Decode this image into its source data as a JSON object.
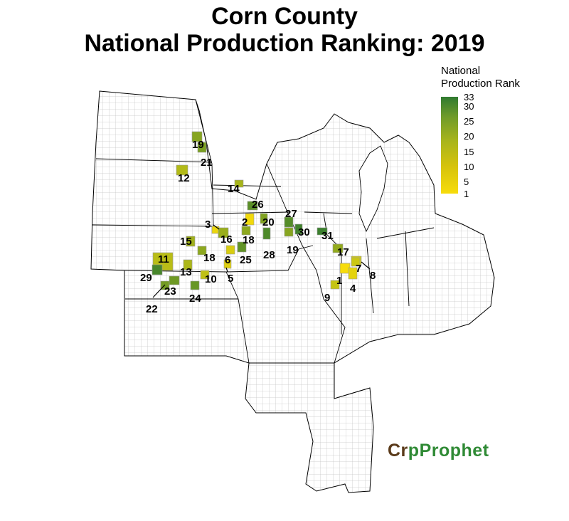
{
  "title": {
    "line1": "Corn County",
    "line2": "National Production Ranking: 2019"
  },
  "legend": {
    "title_line1": "National",
    "title_line2": "Production Rank",
    "ticks": [
      "33",
      "30",
      "25",
      "20",
      "15",
      "10",
      "5",
      "1"
    ],
    "colors": {
      "low_rank": "#f7dc0b",
      "high_rank": "#2f7a30"
    }
  },
  "brand": {
    "part1": "Cr",
    "part2": "p",
    "part3": "Prophet",
    "icon": "sprout-o-icon"
  },
  "map": {
    "counties": [
      {
        "rank": "1"
      },
      {
        "rank": "2"
      },
      {
        "rank": "3"
      },
      {
        "rank": "4"
      },
      {
        "rank": "5"
      },
      {
        "rank": "6"
      },
      {
        "rank": "7"
      },
      {
        "rank": "8"
      },
      {
        "rank": "9"
      },
      {
        "rank": "10"
      },
      {
        "rank": "11"
      },
      {
        "rank": "12"
      },
      {
        "rank": "13"
      },
      {
        "rank": "14"
      },
      {
        "rank": "15"
      },
      {
        "rank": "16"
      },
      {
        "rank": "17"
      },
      {
        "rank": "18"
      },
      {
        "rank": "18"
      },
      {
        "rank": "19"
      },
      {
        "rank": "19"
      },
      {
        "rank": "20"
      },
      {
        "rank": "21"
      },
      {
        "rank": "22"
      },
      {
        "rank": "23"
      },
      {
        "rank": "24"
      },
      {
        "rank": "25"
      },
      {
        "rank": "26"
      },
      {
        "rank": "27"
      },
      {
        "rank": "28"
      },
      {
        "rank": "29"
      },
      {
        "rank": "30"
      },
      {
        "rank": "31"
      }
    ]
  }
}
